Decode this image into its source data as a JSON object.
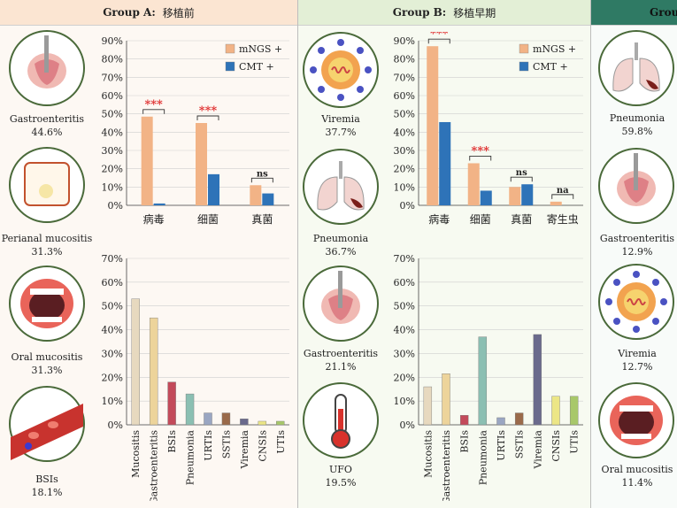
{
  "panels": [
    {
      "id": "A",
      "header_group": "Group A:",
      "header_cn": "移植前",
      "icons": [
        {
          "icon": "gastroenteritis-icon",
          "label": "Gastroenteritis",
          "value": "44.6%"
        },
        {
          "icon": "perianal-mucositis-icon",
          "label": "Perianal mucositis",
          "value": "31.3%"
        },
        {
          "icon": "oral-mucositis-icon",
          "label": "Oral mucositis",
          "value": "31.3%"
        },
        {
          "icon": "bsis-icon",
          "label": "BSIs",
          "value": "18.1%"
        }
      ]
    },
    {
      "id": "B",
      "header_group": "Group B:",
      "header_cn": "移植早期",
      "icons": [
        {
          "icon": "viremia-icon",
          "label": "Viremia",
          "value": "37.7%"
        },
        {
          "icon": "pneumonia-icon",
          "label": "Pneumonia",
          "value": "36.7%"
        },
        {
          "icon": "gastroenteritis-icon",
          "label": "Gastroenteritis",
          "value": "21.1%"
        },
        {
          "icon": "thermometer-icon",
          "label": "UFO",
          "value": "19.5%"
        }
      ]
    },
    {
      "id": "C",
      "header_group": "Grou",
      "header_cn": "",
      "icons": [
        {
          "icon": "pneumonia-icon",
          "label": "Pneumonia",
          "value": "59.8%"
        },
        {
          "icon": "gastroenteritis-icon",
          "label": "Gastroenteritis",
          "value": "12.9%"
        },
        {
          "icon": "viremia-icon",
          "label": "Viremia",
          "value": "12.7%"
        },
        {
          "icon": "oral-mucositis-icon",
          "label": "Oral mucositis",
          "value": "11.4%"
        }
      ]
    }
  ],
  "colors": {
    "mngs": "#f2b386",
    "cmt": "#2e73b8",
    "sig_red": "#e03030"
  },
  "chart_data": [
    {
      "type": "bar",
      "panel": "A",
      "categories": [
        "病毒",
        "细菌",
        "真菌"
      ],
      "series": [
        {
          "name": "mNGS +",
          "values": [
            48.5,
            45,
            11
          ]
        },
        {
          "name": "CMT +",
          "values": [
            1,
            17,
            6.5
          ]
        }
      ],
      "significance": [
        "***",
        "***",
        "ns"
      ],
      "ylim": [
        0,
        90
      ],
      "yticks": [
        "0%",
        "10%",
        "20%",
        "30%",
        "40%",
        "50%",
        "60%",
        "70%",
        "80%",
        "90%"
      ],
      "legend": "top-right"
    },
    {
      "type": "bar",
      "panel": "A",
      "categories": [
        "Mucositis",
        "Gastroenteritis",
        "BSIs",
        "Pneumonia",
        "URTIs",
        "SSTIs",
        "Viremia",
        "CNSIs",
        "UTIs"
      ],
      "values": [
        53,
        45,
        18,
        13,
        5,
        5,
        2.5,
        1.5,
        1.5
      ],
      "bar_colors": [
        "#e7d9bf",
        "#edd49b",
        "#c34a5a",
        "#8bbfb2",
        "#9aa6c2",
        "#9a6a4a",
        "#6a6a8c",
        "#ece686",
        "#a8c86a"
      ],
      "ylim": [
        0,
        70
      ],
      "yticks": [
        "0%",
        "10%",
        "20%",
        "30%",
        "40%",
        "50%",
        "60%",
        "70%"
      ]
    },
    {
      "type": "bar",
      "panel": "B",
      "categories": [
        "病毒",
        "细菌",
        "真菌",
        "寄生虫"
      ],
      "series": [
        {
          "name": "mNGS +",
          "values": [
            87,
            23,
            10,
            2
          ]
        },
        {
          "name": "CMT +",
          "values": [
            45.5,
            8,
            11.5,
            0
          ]
        }
      ],
      "significance": [
        "***",
        "***",
        "ns",
        "na"
      ],
      "ylim": [
        0,
        90
      ],
      "yticks": [
        "0%",
        "10%",
        "20%",
        "30%",
        "40%",
        "50%",
        "60%",
        "70%",
        "80%",
        "90%"
      ],
      "legend": "top-right"
    },
    {
      "type": "bar",
      "panel": "B",
      "categories": [
        "Mucositis",
        "Gastroenteritis",
        "BSIs",
        "Pneumonia",
        "URTIs",
        "SSTIs",
        "Viremia",
        "CNSIs",
        "UTIs"
      ],
      "values": [
        16,
        21.5,
        4,
        37,
        3,
        5,
        38,
        12,
        12
      ],
      "bar_colors": [
        "#e7d9bf",
        "#edd49b",
        "#c34a5a",
        "#8bbfb2",
        "#9aa6c2",
        "#9a6a4a",
        "#6a6a8c",
        "#ece686",
        "#a8c86a"
      ],
      "ylim": [
        0,
        70
      ],
      "yticks": [
        "0%",
        "10%",
        "20%",
        "30%",
        "40%",
        "50%",
        "60%",
        "70%"
      ]
    }
  ]
}
